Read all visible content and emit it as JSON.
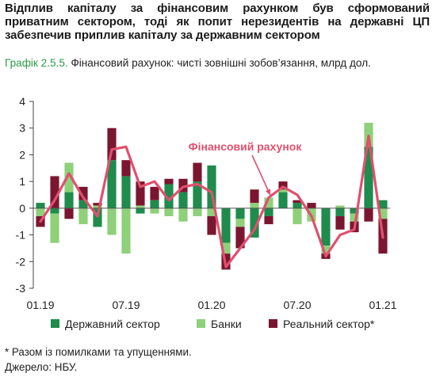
{
  "headline": "Відплив капіталу за фінансовим рахунком був сформований приватним сектором, тоді як попит нерезидентів на державні ЦП забезпечив приплив капіталу за державним сектором",
  "caption": {
    "label": "Графік 2.5.5.",
    "text": " Фінансовий рахунок: чисті зовнішні зобов’язання, млрд дол."
  },
  "footnotes": {
    "note": "* Разом із помилками та упущеннями.",
    "source": "Джерело: НБУ."
  },
  "colors": {
    "state": "#1f8b4c",
    "banks": "#8fd07a",
    "real": "#7b1630",
    "line": "#e0506e"
  },
  "chart_data": {
    "type": "bar",
    "stacked": true,
    "categories": [
      "01.19",
      "02.19",
      "03.19",
      "04.19",
      "05.19",
      "06.19",
      "07.19",
      "08.19",
      "09.19",
      "10.19",
      "11.19",
      "12.19",
      "01.20",
      "02.20",
      "03.20",
      "04.20",
      "05.20",
      "06.20",
      "07.20",
      "08.20",
      "09.20",
      "10.20",
      "11.20",
      "12.20",
      "01.21"
    ],
    "xtick_labels": [
      "01.19",
      "07.19",
      "01.20",
      "07.20",
      "01.21"
    ],
    "ylim": [
      -3,
      4
    ],
    "yticks": [
      -3,
      -2,
      -1,
      0,
      1,
      2,
      3,
      4
    ],
    "legend_position": "bottom",
    "series": [
      {
        "name": "Державний сектор",
        "color_key": "state",
        "values": [
          0.2,
          -0.2,
          0.6,
          0.3,
          -0.7,
          1.8,
          1.2,
          -0.2,
          0.3,
          0.9,
          0.6,
          1.0,
          1.6,
          -1.3,
          -0.4,
          -1.1,
          -0.3,
          0.6,
          0.2,
          0.0,
          -1.4,
          -0.3,
          -0.2,
          2.3,
          0.3
        ]
      },
      {
        "name": "Банки",
        "color_key": "banks",
        "values": [
          -0.3,
          -1.1,
          1.1,
          -0.6,
          0.1,
          -1.0,
          -1.7,
          0.1,
          -0.2,
          -0.3,
          -0.5,
          -0.3,
          -0.3,
          -0.4,
          -0.3,
          0.2,
          0.4,
          0.1,
          -0.6,
          -0.5,
          -0.3,
          0.1,
          -0.3,
          0.9,
          -0.4
        ]
      },
      {
        "name": "Реальний сектор*",
        "color_key": "real",
        "values": [
          -0.4,
          1.2,
          -0.4,
          0.5,
          0.1,
          1.2,
          0.6,
          0.9,
          0.5,
          0.2,
          0.5,
          0.7,
          -0.7,
          -0.6,
          -0.8,
          0.5,
          -0.3,
          0.3,
          0.1,
          0.2,
          -0.2,
          -0.5,
          -0.4,
          -0.5,
          -1.3
        ]
      }
    ],
    "line": {
      "name": "Фінансовий рахунок",
      "color_key": "line",
      "values": [
        -0.5,
        0.3,
        1.3,
        0.4,
        -0.3,
        2.2,
        2.3,
        0.8,
        1.0,
        0.3,
        0.8,
        0.9,
        0.6,
        -2.2,
        -1.5,
        -0.8,
        0.4,
        0.8,
        0.5,
        -0.3,
        -1.8,
        -1.0,
        -0.8,
        2.7,
        -1.1
      ]
    },
    "annotations": [
      {
        "text": "Фінансовий рахунок"
      }
    ]
  }
}
